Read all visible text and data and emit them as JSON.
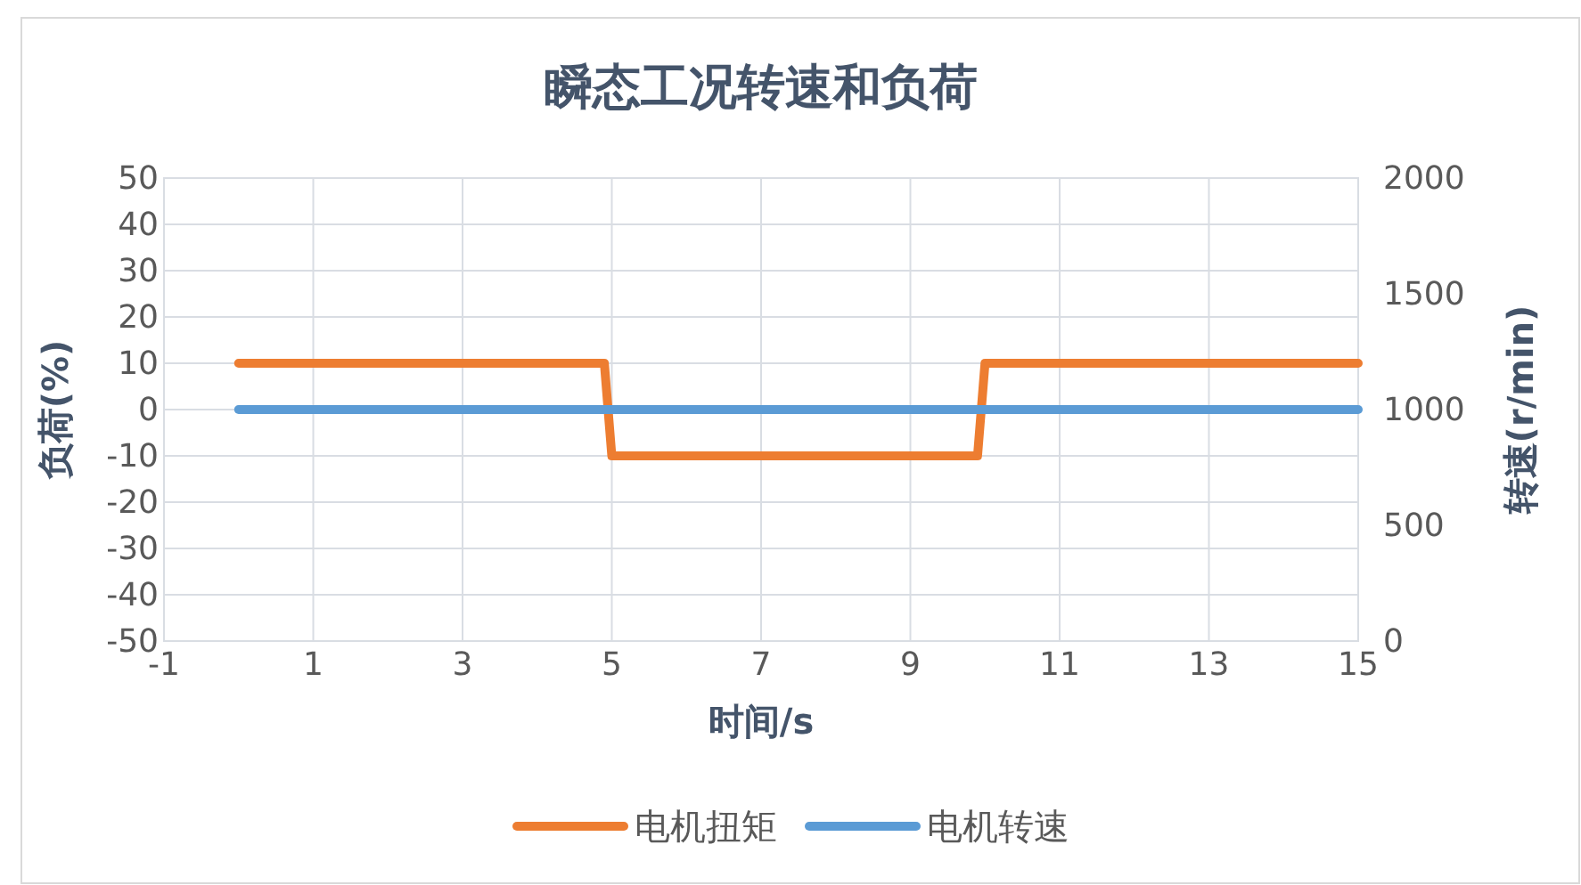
{
  "chart_data": {
    "type": "line",
    "title": "瞬态工况转速和负荷",
    "xlabel": "时间/s",
    "ylabel": "负荷(%)",
    "y2label": "转速(r/min)",
    "xlim": [
      -1,
      15
    ],
    "xticks": [
      -1,
      1,
      3,
      5,
      7,
      9,
      11,
      13,
      15
    ],
    "ylim": [
      -50,
      50
    ],
    "yticks": [
      -50,
      -40,
      -30,
      -20,
      -10,
      0,
      10,
      20,
      30,
      40,
      50
    ],
    "y2lim": [
      0,
      2000
    ],
    "y2ticks": [
      0,
      500,
      1000,
      1500,
      2000
    ],
    "grid": true,
    "legend": "bottom",
    "marker": "none",
    "line_style": "solid",
    "series": [
      {
        "name": "电机扭矩",
        "color": "#ed7d31",
        "x": [
          0,
          4.9,
          5,
          9.9,
          10,
          15
        ],
        "values": [
          10,
          10,
          -10,
          -10,
          10,
          10
        ]
      },
      {
        "name": "电机转速",
        "color": "#5b9bd5",
        "axis": "y2",
        "x": [
          0,
          15
        ],
        "values": [
          1000,
          1000
        ]
      }
    ]
  }
}
